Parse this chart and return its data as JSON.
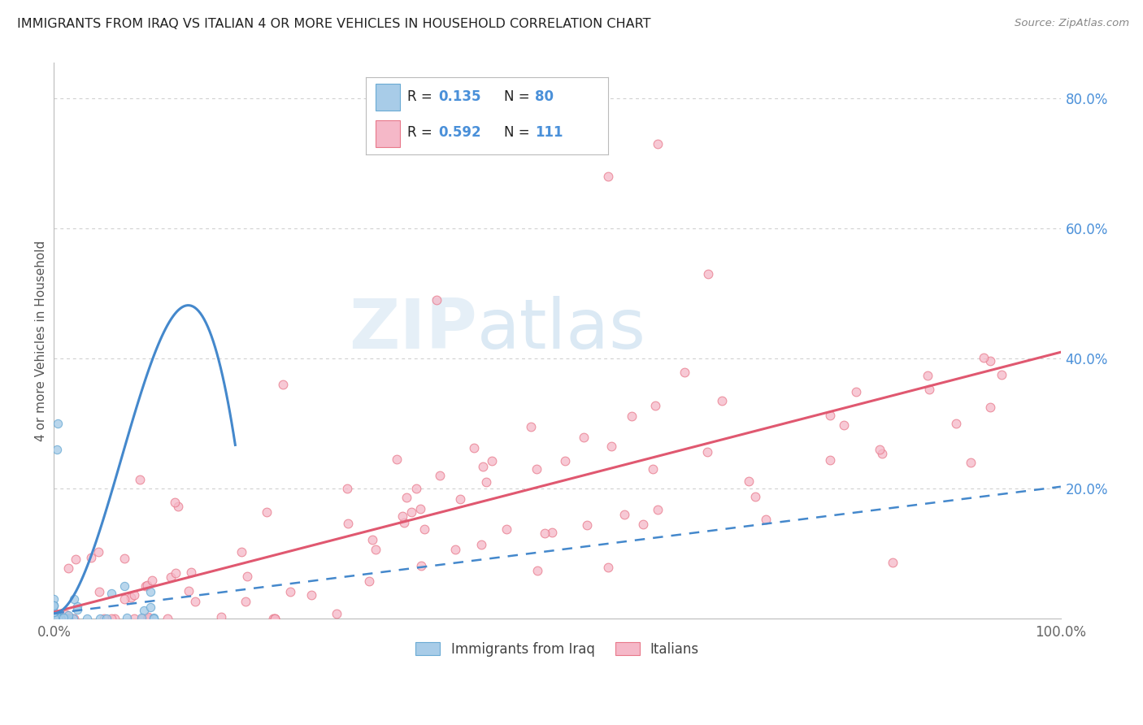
{
  "title": "IMMIGRANTS FROM IRAQ VS ITALIAN 4 OR MORE VEHICLES IN HOUSEHOLD CORRELATION CHART",
  "source": "Source: ZipAtlas.com",
  "ylabel": "4 or more Vehicles in Household",
  "right_yticklabels": [
    "",
    "20.0%",
    "40.0%",
    "60.0%",
    "80.0%"
  ],
  "right_ytick_vals": [
    0.0,
    0.2,
    0.4,
    0.6,
    0.8
  ],
  "watermark_zip": "ZIP",
  "watermark_atlas": "atlas",
  "color_iraq": "#a8cce8",
  "color_iraq_edge": "#6aaad4",
  "color_italian": "#f5b8c8",
  "color_italian_edge": "#e8788a",
  "color_iraq_line": "#4488cc",
  "color_italian_line": "#e05870",
  "color_grid": "#cccccc",
  "legend_text_color": "#222222",
  "legend_val_color": "#4a90d9",
  "axis_tick_color": "#666666",
  "ylabel_color": "#555555",
  "title_color": "#222222",
  "source_color": "#888888"
}
